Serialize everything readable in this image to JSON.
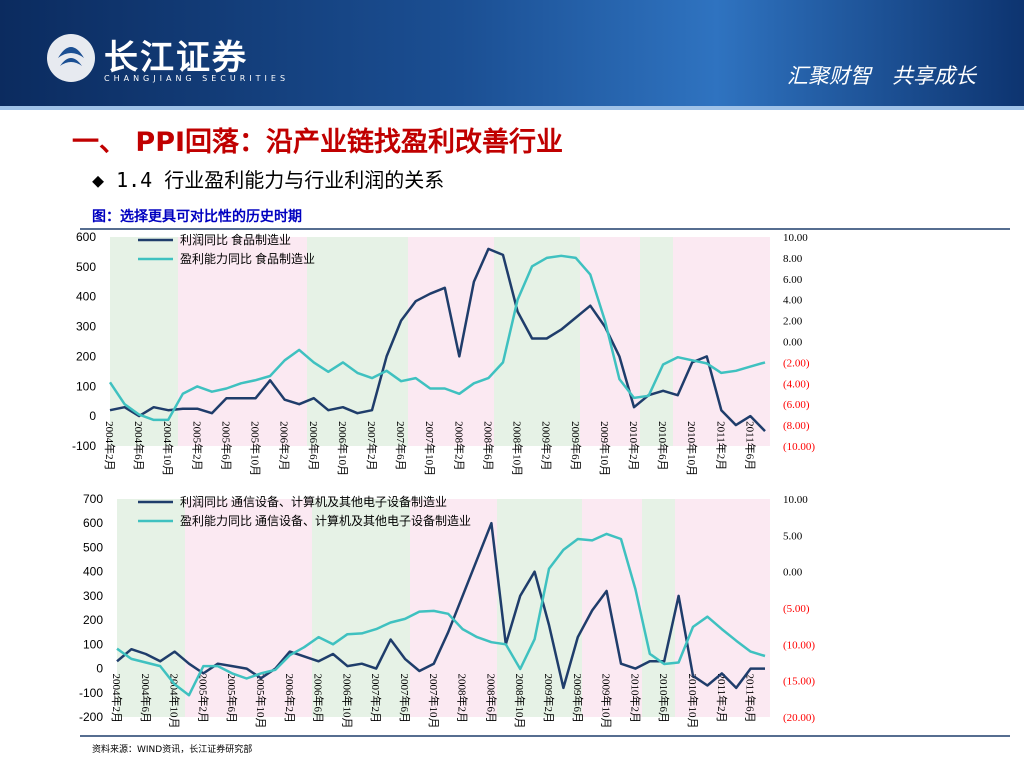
{
  "slide": {
    "logo_text": "长江证券",
    "logo_subtext": "CHANGJIANG SECURITIES",
    "slogan": "汇聚财智　共享成长",
    "title": "一、 PPI回落：沿产业链找盈利改善行业",
    "subtitle": "◆ 1.4 行业盈利能力与行业利润的关系",
    "caption": "图：选择更具可对比性的历史时期",
    "source": "资料来源：WIND资讯，长江证券研究部"
  },
  "chart_data": [
    {
      "type": "line",
      "categories": [
        "2004年2月",
        null,
        "2004年6月",
        null,
        "2004年10月",
        null,
        "2005年2月",
        null,
        "2005年6月",
        null,
        "2005年10月",
        null,
        "2006年2月",
        null,
        "2006年6月",
        null,
        "2006年10月",
        null,
        "2007年2月",
        null,
        "2007年6月",
        null,
        "2007年10月",
        null,
        "2008年2月",
        null,
        "2008年6月",
        null,
        "2008年10月",
        null,
        "2009年2月",
        null,
        "2009年6月",
        null,
        "2009年10月",
        null,
        "2010年2月",
        null,
        "2010年6月",
        null,
        "2010年10月",
        null,
        "2011年2月",
        null,
        "2011年6月",
        null
      ],
      "series": [
        {
          "name": "利润同比  食品制造业",
          "color": "#1f3d6b",
          "values": [
            20,
            30,
            0,
            30,
            20,
            25,
            25,
            10,
            60,
            60,
            60,
            120,
            55,
            40,
            60,
            20,
            30,
            10,
            20,
            200,
            320,
            385,
            410,
            430,
            200,
            450,
            560,
            540,
            350,
            260,
            260,
            290,
            330,
            370,
            300,
            200,
            30,
            70,
            85,
            70,
            180,
            200,
            20,
            -30,
            0,
            -50
          ]
        },
        {
          "name": "盈利能力同比  食品制造业",
          "color": "#3fc1c0",
          "axis": "y2",
          "values": [
            -3.9,
            -6,
            -7,
            -7.5,
            -7.5,
            -5,
            -4.3,
            -4.8,
            -4.5,
            -4,
            -3.7,
            -3.3,
            -1.8,
            -0.8,
            -2,
            -2.9,
            -2,
            -3,
            -3.5,
            -2.8,
            -3.8,
            -3.5,
            -4.5,
            -4.5,
            -5,
            -4,
            -3.5,
            -2,
            4,
            7.2,
            8,
            8.2,
            8,
            6.4,
            2,
            -3.6,
            -5.4,
            -5.2,
            -2.2,
            -1.5,
            -1.8,
            -2.1,
            -3,
            -2.8,
            -2.4,
            -2
          ]
        }
      ],
      "ylim": [
        -100,
        600
      ],
      "yticks": [
        600,
        500,
        400,
        300,
        200,
        100,
        0,
        -100
      ],
      "y2lim": [
        -10,
        10
      ],
      "y2ticks": [
        {
          "value": 10,
          "label": "10.00"
        },
        {
          "value": 8,
          "label": "8.00"
        },
        {
          "value": 6,
          "label": "6.00"
        },
        {
          "value": 4,
          "label": "4.00"
        },
        {
          "value": 2,
          "label": "2.00"
        },
        {
          "value": 0,
          "label": "0.00"
        },
        {
          "value": -2,
          "label": "(2.00)"
        },
        {
          "value": -4,
          "label": "(4.00)"
        },
        {
          "value": -6,
          "label": "(6.00)"
        },
        {
          "value": -8,
          "label": "(8.00)"
        },
        {
          "value": -10,
          "label": "(10.00)"
        }
      ],
      "negative_label_color": "#ff0000",
      "grid": false,
      "legend": "upper left"
    },
    {
      "type": "line",
      "categories": [
        "2004年2月",
        null,
        "2004年6月",
        null,
        "2004年10月",
        null,
        "2005年2月",
        null,
        "2005年6月",
        null,
        "2005年10月",
        null,
        "2006年2月",
        null,
        "2006年6月",
        null,
        "2006年10月",
        null,
        "2007年2月",
        null,
        "2007年6月",
        null,
        "2007年10月",
        null,
        "2008年2月",
        null,
        "2008年6月",
        null,
        "2008年10月",
        null,
        "2009年2月",
        null,
        "2009年6月",
        null,
        "2009年10月",
        null,
        "2010年2月",
        null,
        "2010年6月",
        null,
        "2010年10月",
        null,
        "2011年2月",
        null,
        "2011年6月",
        null
      ],
      "series": [
        {
          "name": "利润同比  通信设备、计算机及其他电子设备制造业",
          "color": "#1f3d6b",
          "values": [
            30,
            80,
            60,
            30,
            70,
            20,
            -20,
            20,
            10,
            0,
            -40,
            0,
            70,
            50,
            30,
            60,
            10,
            20,
            0,
            120,
            40,
            -10,
            20,
            150,
            300,
            450,
            600,
            100,
            300,
            400,
            180,
            -80,
            130,
            240,
            320,
            20,
            0,
            30,
            30,
            300,
            -30,
            -70,
            -20,
            -80,
            0,
            0
          ]
        },
        {
          "name": "盈利能力同比  通信设备、计算机及其他电子设备制造业",
          "color": "#3fc1c0",
          "axis": "y2",
          "values": [
            -10.6,
            -12,
            -12.5,
            -13,
            -15.5,
            -17,
            -13,
            -13,
            -14,
            -14.7,
            -14,
            -13.5,
            -11.5,
            -10.4,
            -9,
            -10,
            -8.6,
            -8.5,
            -7.9,
            -7,
            -6.5,
            -5.5,
            -5.4,
            -5.8,
            -7.9,
            -9,
            -9.7,
            -10,
            -13.4,
            -9.3,
            0.4,
            3,
            4.5,
            4.3,
            5.2,
            4.5,
            -2.4,
            -11.3,
            -12.7,
            -12.5,
            -7.6,
            -6.2,
            -7.9,
            -9.5,
            -11,
            -11.6
          ]
        }
      ],
      "ylim": [
        -200,
        700
      ],
      "yticks": [
        700,
        600,
        500,
        400,
        300,
        200,
        100,
        0,
        -100,
        -200
      ],
      "y2lim": [
        -20,
        10
      ],
      "y2ticks": [
        {
          "value": 10,
          "label": "10.00"
        },
        {
          "value": 5,
          "label": "5.00"
        },
        {
          "value": 0,
          "label": "0.00"
        },
        {
          "value": -5,
          "label": "(5.00)"
        },
        {
          "value": -10,
          "label": "(10.00)"
        },
        {
          "value": -15,
          "label": "(15.00)"
        },
        {
          "value": -20,
          "label": "(20.00)"
        }
      ],
      "negative_label_color": "#ff0000",
      "grid": false,
      "legend": "upper left"
    }
  ]
}
